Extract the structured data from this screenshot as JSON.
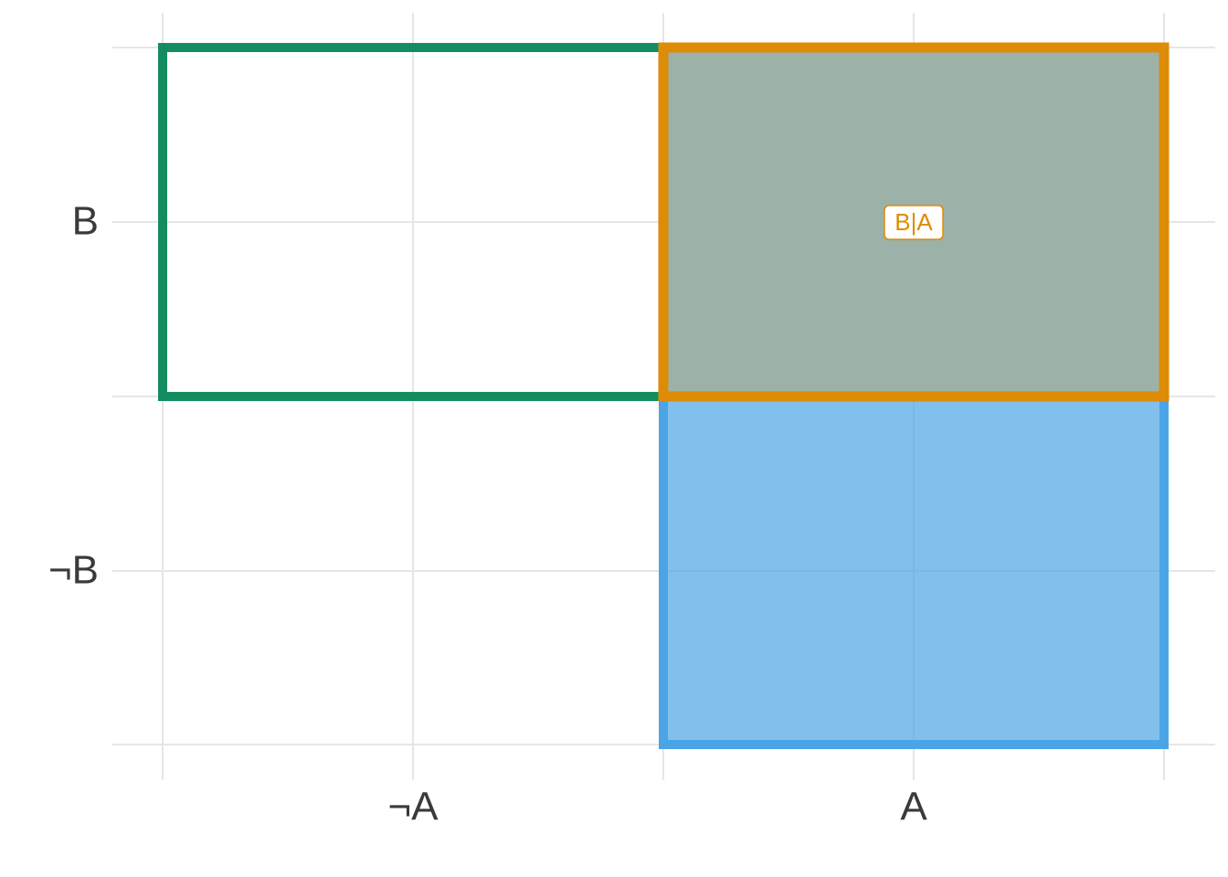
{
  "diagram": {
    "x_labels": [
      "¬A",
      "A"
    ],
    "y_labels": [
      "B",
      "¬B"
    ],
    "annotation": "B|A"
  }
}
